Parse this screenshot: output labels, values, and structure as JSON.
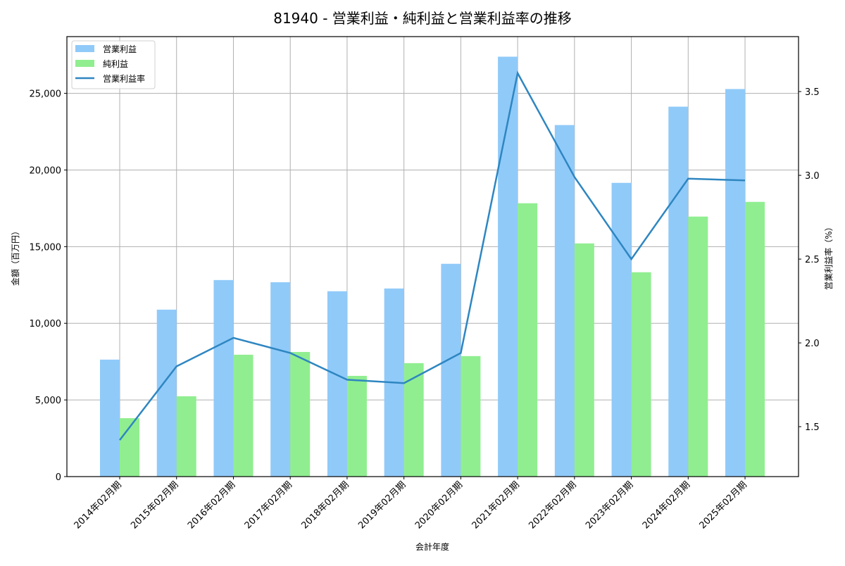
{
  "chart_data": {
    "type": "bar+line",
    "title": "81940 - 営業利益・純利益と営業利益率の推移",
    "xlabel": "会計年度",
    "ylabel": "金額（百万円）",
    "y2label": "営業利益率（%）",
    "categories": [
      "2014年02月期",
      "2015年02月期",
      "2016年02月期",
      "2017年02月期",
      "2018年02月期",
      "2019年02月期",
      "2020年02月期",
      "2021年02月期",
      "2022年02月期",
      "2023年02月期",
      "2024年02月期",
      "2025年02月期"
    ],
    "series": [
      {
        "name": "営業利益",
        "type": "bar",
        "axis": "left",
        "color": "#90caf9",
        "values": [
          7630,
          10890,
          12820,
          12680,
          12090,
          12270,
          13880,
          27390,
          22930,
          19160,
          24130,
          25280
        ]
      },
      {
        "name": "純利益",
        "type": "bar",
        "axis": "left",
        "color": "#90ee90",
        "values": [
          3810,
          5240,
          7950,
          8130,
          6570,
          7400,
          7860,
          17830,
          15210,
          13330,
          16960,
          17920
        ]
      },
      {
        "name": "営業利益率",
        "type": "line",
        "axis": "right",
        "color": "#2e86c1",
        "values": [
          1.42,
          1.86,
          2.03,
          1.94,
          1.78,
          1.76,
          1.94,
          3.61,
          2.99,
          2.5,
          2.98,
          2.97
        ]
      }
    ],
    "ylim": [
      0,
      28700
    ],
    "y2lim": [
      1.202,
      3.828
    ],
    "yticks": [
      0,
      5000,
      10000,
      15000,
      20000,
      25000
    ],
    "ytick_labels": [
      "0",
      "5,000",
      "10,000",
      "15,000",
      "20,000",
      "25,000"
    ],
    "y2ticks": [
      1.5,
      2.0,
      2.5,
      3.0,
      3.5
    ],
    "y2tick_labels": [
      "1.5",
      "2.0",
      "2.5",
      "3.0",
      "3.5"
    ],
    "grid": true,
    "legend_position": "upper left"
  }
}
